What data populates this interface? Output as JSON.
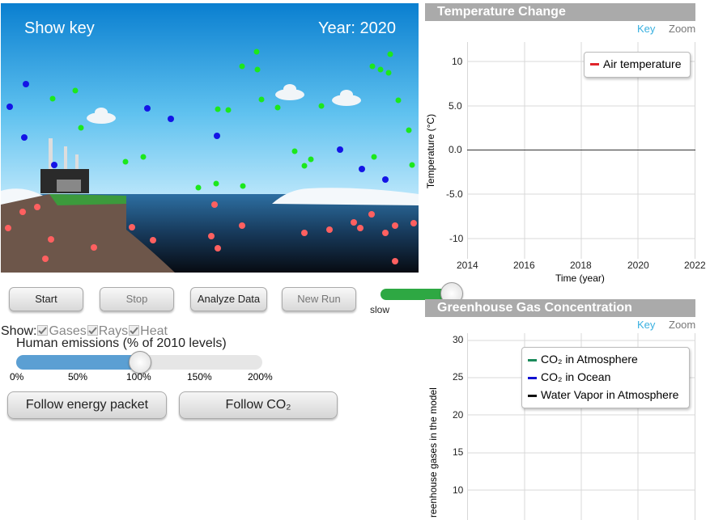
{
  "scene": {
    "show_key_label": "Show key",
    "year_label": "Year: 2020"
  },
  "controls": {
    "start": "Start",
    "stop": "Stop",
    "analyze": "Analyze Data",
    "new_run": "New Run",
    "speed_label": "slow",
    "speed_level": 0.95
  },
  "show": {
    "label": "Show:",
    "options": [
      {
        "label": "Gases",
        "checked": true
      },
      {
        "label": "Rays",
        "checked": true
      },
      {
        "label": "Heat",
        "checked": true
      }
    ]
  },
  "emissions": {
    "label": "Human emissions (% of 2010 levels)",
    "ticks": [
      "0%",
      "50%",
      "100%",
      "150%",
      "200%"
    ],
    "value_percent": 100
  },
  "follow": {
    "energy": "Follow energy packet",
    "co2": "Follow CO₂"
  },
  "temperature_chart": {
    "title": "Temperature Change",
    "key_label": "Key",
    "zoom_label": "Zoom",
    "ylabel": "Temperature (°C)",
    "xlabel": "Time (year)",
    "yticks": [
      "10",
      "5.0",
      "0.0",
      "-5.0",
      "-10"
    ],
    "xticks": [
      "2014",
      "2016",
      "2018",
      "2020",
      "2022"
    ],
    "legend": [
      {
        "name": "Air temperature",
        "color": "#e0242a"
      }
    ]
  },
  "ghg_chart": {
    "title": "Greenhouse Gas Concentration",
    "key_label": "Key",
    "zoom_label": "Zoom",
    "ylabel": "reenhouse gases in the model",
    "yticks": [
      "30",
      "25",
      "20",
      "15",
      "10"
    ],
    "legend": [
      {
        "name": "CO₂ in Atmosphere",
        "color": "#1a8a5a"
      },
      {
        "name": "CO₂ in Ocean",
        "color": "#1010d0"
      },
      {
        "name": "Water Vapor in Atmosphere",
        "color": "#111111"
      }
    ]
  },
  "chart_data": [
    {
      "type": "line",
      "title": "Temperature Change",
      "xlabel": "Time (year)",
      "ylabel": "Temperature (°C)",
      "xlim": [
        2014,
        2022
      ],
      "ylim": [
        -12,
        12
      ],
      "series": [
        {
          "name": "Air temperature",
          "x": [],
          "y": []
        }
      ],
      "grid": true,
      "legend": "top-right"
    },
    {
      "type": "line",
      "title": "Greenhouse Gas Concentration",
      "ylabel": "reenhouse gases in the model",
      "ylim": [
        5,
        30
      ],
      "series": [
        {
          "name": "CO₂ in Atmosphere",
          "x": [],
          "y": []
        },
        {
          "name": "CO₂ in Ocean",
          "x": [],
          "y": []
        },
        {
          "name": "Water Vapor in Atmosphere",
          "x": [],
          "y": []
        }
      ],
      "grid": true,
      "legend": "top-right"
    }
  ]
}
